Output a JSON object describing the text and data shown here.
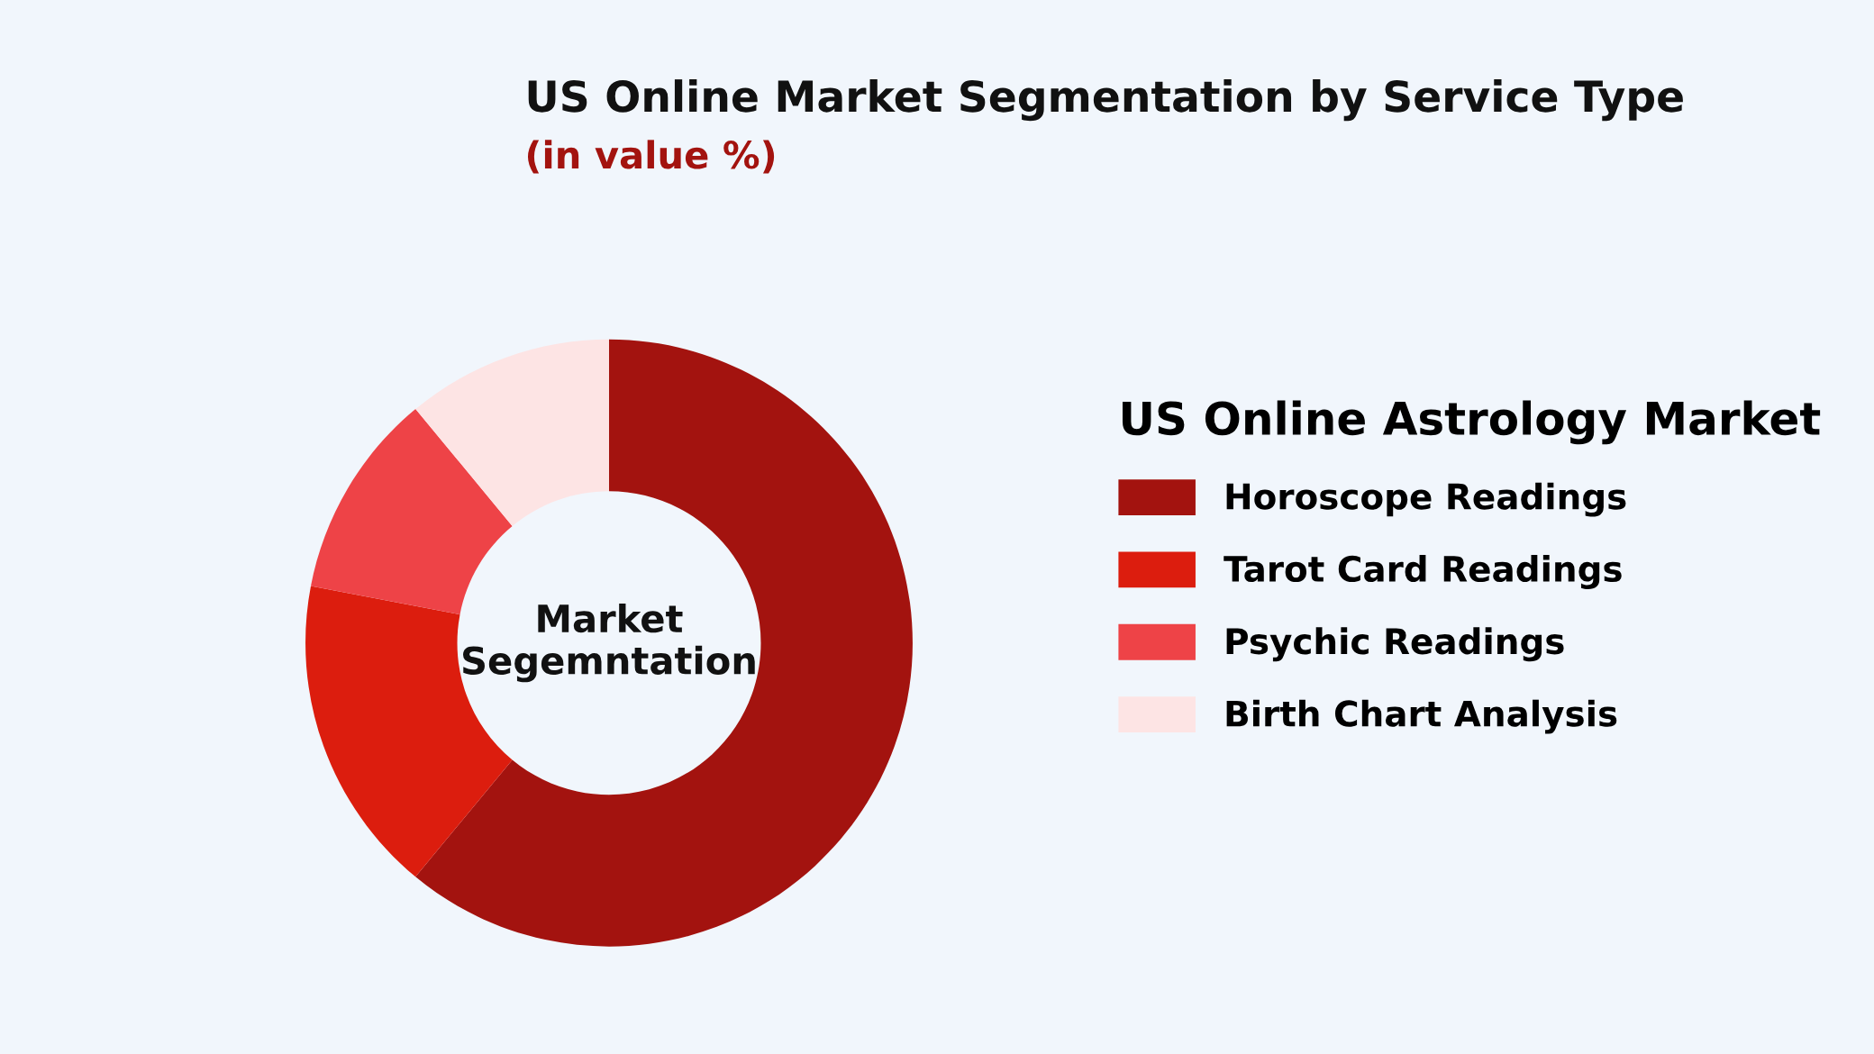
{
  "chart_data": {
    "type": "donut",
    "title": "US Online Market Segmentation by Service Type",
    "subtitle": "(in value %)",
    "legend_title": "US Online Astrology Market",
    "legend": "right",
    "categories": [
      "Horoscope Readings",
      "Tarot Card Readings",
      "Psychic Readings",
      "Birth Chart Analysis"
    ],
    "values": [
      61,
      17,
      11,
      11
    ],
    "colors": [
      "#a3130f",
      "#dc1d0e",
      "#ee4347",
      "#fde4e4"
    ],
    "annotations": [
      "Market\nSegemntation"
    ]
  }
}
